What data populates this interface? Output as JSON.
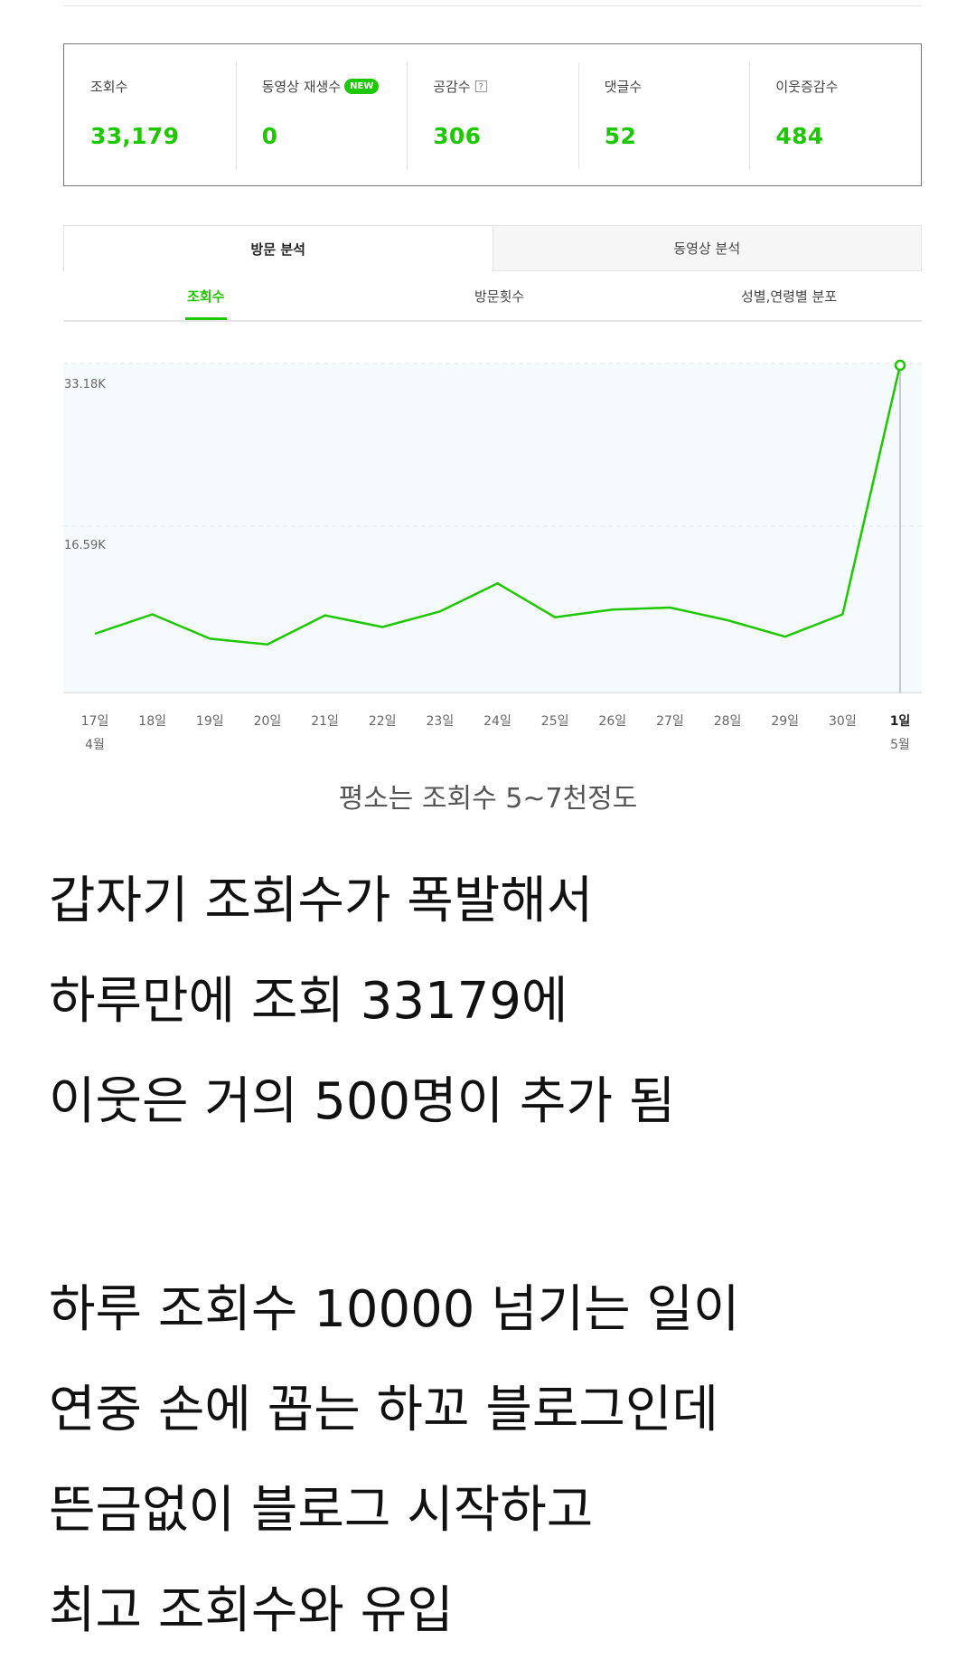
{
  "stats": [
    {
      "label": "조회수",
      "value": "33,179"
    },
    {
      "label": "동영상 재생수",
      "badge": "NEW",
      "value": "0"
    },
    {
      "label": "공감수",
      "help": "?",
      "value": "306"
    },
    {
      "label": "댓글수",
      "value": "52"
    },
    {
      "label": "이웃증감수",
      "value": "484"
    }
  ],
  "main_tabs": [
    {
      "label": "방문 분석"
    },
    {
      "label": "동영상 분석"
    }
  ],
  "sub_tabs": [
    {
      "label": "조회수"
    },
    {
      "label": "방문횟수"
    },
    {
      "label": "성별,연령별 분포"
    }
  ],
  "colors": {
    "accent": "#1ec800",
    "chart_bg": "#f5fafd"
  },
  "chart_data": {
    "type": "line",
    "x": [
      "17일",
      "18일",
      "19일",
      "20일",
      "21일",
      "22일",
      "23일",
      "24일",
      "25일",
      "26일",
      "27일",
      "28일",
      "29일",
      "30일",
      "1일"
    ],
    "month_labels": [
      {
        "index": 0,
        "label": "4월"
      },
      {
        "index": 14,
        "label": "5월"
      }
    ],
    "y_ticks": [
      {
        "value": 16590,
        "label": "16.59K"
      },
      {
        "value": 33180,
        "label": "33.18K"
      }
    ],
    "ylim": [
      0,
      33180
    ],
    "series": [
      {
        "values": [
          5500,
          7500,
          5000,
          4400,
          7400,
          6200,
          7800,
          10700,
          7200,
          8000,
          8200,
          6900,
          5200,
          7500,
          33179
        ]
      }
    ],
    "highlight_index": 14
  },
  "caption": "평소는 조회수 5~7천정도",
  "paragraphs": [
    [
      "갑자기 조회수가 폭발해서",
      "하루만에 조회 33179에",
      "이웃은 거의 500명이 추가 됨"
    ],
    [
      "하루 조회수 10000 넘기는 일이",
      "연중 손에 꼽는 하꼬 블로그인데",
      "뜬금없이 블로그 시작하고",
      "최고 조회수와 유입"
    ]
  ]
}
